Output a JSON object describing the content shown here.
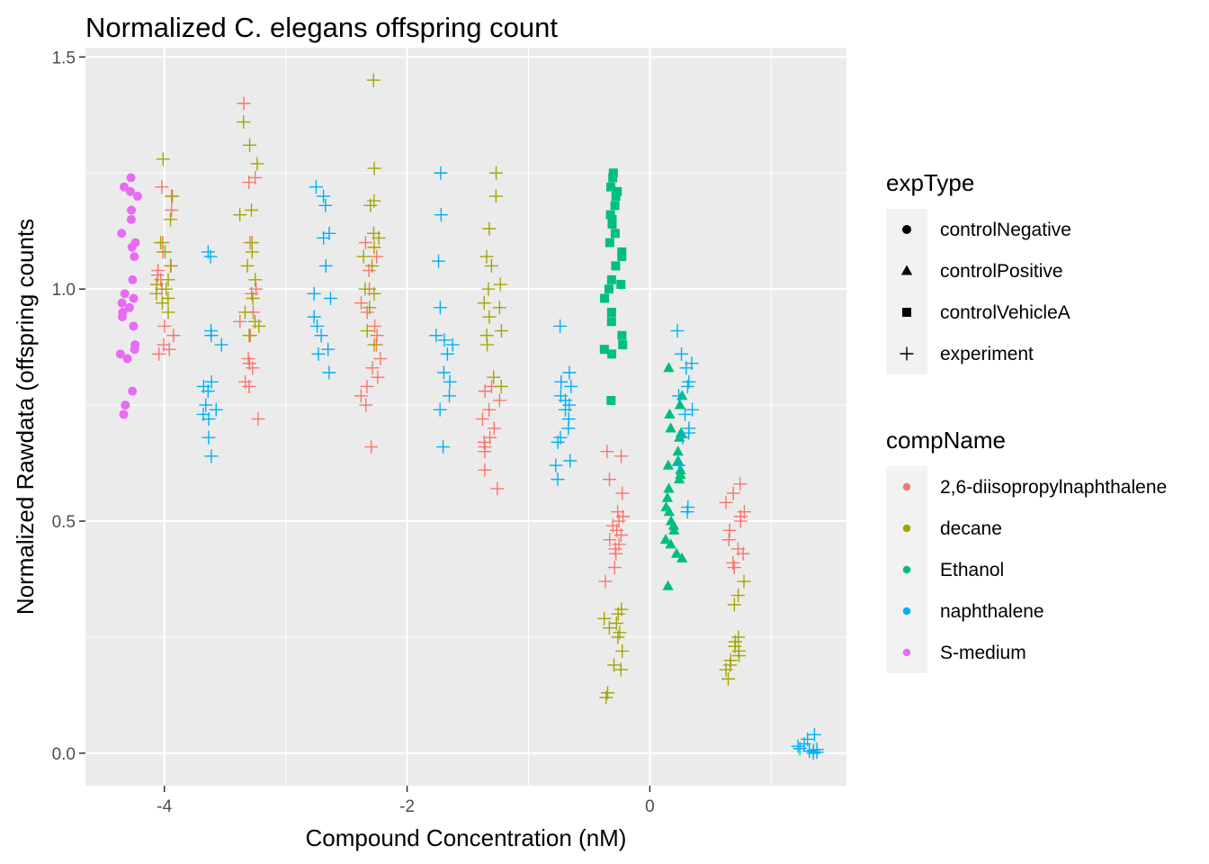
{
  "chart_data": {
    "type": "scatter",
    "title": "Normalized C. elegans offspring count",
    "xlabel": "Compound Concentration (nM)",
    "ylabel": "Normalized Rawdata (offspring counts",
    "xlim": [
      -4.65,
      1.62
    ],
    "ylim": [
      -0.07,
      1.52
    ],
    "x_ticks": [
      -4,
      -2,
      0
    ],
    "y_ticks": [
      0.0,
      0.5,
      1.0,
      1.5
    ],
    "x_tick_labels": [
      "-4",
      "-2",
      "0"
    ],
    "y_tick_labels": [
      "0.0",
      "0.5",
      "1.0",
      "1.5"
    ],
    "grid": true,
    "legend_position": "right",
    "shape_legend": {
      "title": "expType",
      "items": [
        {
          "label": "controlNegative",
          "shape": "circle"
        },
        {
          "label": "controlPositive",
          "shape": "triangle"
        },
        {
          "label": "controlVehicleA",
          "shape": "square"
        },
        {
          "label": "experiment",
          "shape": "plus"
        }
      ]
    },
    "color_legend": {
      "title": "compName",
      "items": [
        {
          "label": "2,6-diisopropylnaphthalene",
          "color": "#F8766D"
        },
        {
          "label": "decane",
          "color": "#A3A500"
        },
        {
          "label": "Ethanol",
          "color": "#00BF7D"
        },
        {
          "label": "naphthalene",
          "color": "#00B0F6"
        },
        {
          "label": "S-medium",
          "color": "#E76BF3"
        }
      ]
    },
    "groups": [
      {
        "compName": "S-medium",
        "expType": "controlNegative",
        "x": -4.3,
        "y": [
          1.24,
          1.22,
          1.21,
          1.2,
          1.17,
          1.15,
          1.12,
          1.1,
          1.09,
          1.07,
          1.02,
          0.99,
          0.98,
          0.97,
          0.96,
          0.95,
          0.94,
          0.92,
          0.88,
          0.87,
          0.86,
          0.85,
          0.78,
          0.75,
          0.73
        ]
      },
      {
        "compName": "2,6-diisopropylnaphthalene",
        "expType": "experiment",
        "x": -4.0,
        "y": [
          1.22,
          1.2,
          1.17,
          1.1,
          1.08,
          1.05,
          1.04,
          1.03,
          1.02,
          1.0,
          0.92,
          0.9,
          0.88,
          0.87,
          0.86
        ]
      },
      {
        "compName": "decane",
        "expType": "experiment",
        "x": -4.0,
        "y": [
          1.28,
          1.2,
          1.15,
          1.1,
          1.08,
          1.05,
          1.02,
          1.01,
          1.0,
          0.99,
          0.98,
          0.97,
          0.95
        ]
      },
      {
        "compName": "naphthalene",
        "expType": "experiment",
        "x": -3.6,
        "y": [
          1.08,
          1.07,
          0.91,
          0.9,
          0.88,
          0.8,
          0.79,
          0.78,
          0.75,
          0.74,
          0.73,
          0.72,
          0.68,
          0.64
        ]
      },
      {
        "compName": "2,6-diisopropylnaphthalene",
        "expType": "experiment",
        "x": -3.3,
        "y": [
          1.4,
          1.24,
          1.23,
          1.1,
          1.0,
          0.99,
          0.95,
          0.93,
          0.9,
          0.85,
          0.84,
          0.83,
          0.8,
          0.79,
          0.72
        ]
      },
      {
        "compName": "decane",
        "expType": "experiment",
        "x": -3.3,
        "y": [
          1.36,
          1.31,
          1.27,
          1.17,
          1.16,
          1.1,
          1.08,
          1.05,
          1.02,
          0.98,
          0.95,
          0.93,
          0.92,
          0.9
        ]
      },
      {
        "compName": "naphthalene",
        "expType": "experiment",
        "x": -2.7,
        "y": [
          1.22,
          1.2,
          1.18,
          1.12,
          1.11,
          1.05,
          0.99,
          0.98,
          0.94,
          0.92,
          0.9,
          0.87,
          0.86,
          0.82
        ]
      },
      {
        "compName": "2,6-diisopropylnaphthalene",
        "expType": "experiment",
        "x": -2.3,
        "y": [
          1.1,
          1.07,
          1.04,
          1.0,
          0.97,
          0.95,
          0.92,
          0.9,
          0.88,
          0.85,
          0.83,
          0.81,
          0.79,
          0.77,
          0.75,
          0.66
        ]
      },
      {
        "compName": "decane",
        "expType": "experiment",
        "x": -2.3,
        "y": [
          1.45,
          1.26,
          1.19,
          1.18,
          1.12,
          1.11,
          1.09,
          1.07,
          1.05,
          1.0,
          0.99,
          0.96,
          0.91,
          0.88
        ]
      },
      {
        "compName": "naphthalene",
        "expType": "experiment",
        "x": -1.7,
        "y": [
          1.25,
          1.16,
          1.06,
          0.96,
          0.9,
          0.89,
          0.88,
          0.86,
          0.82,
          0.8,
          0.77,
          0.74,
          0.66
        ]
      },
      {
        "compName": "2,6-diisopropylnaphthalene",
        "expType": "experiment",
        "x": -1.3,
        "y": [
          0.79,
          0.78,
          0.76,
          0.74,
          0.72,
          0.7,
          0.68,
          0.67,
          0.66,
          0.65,
          0.61,
          0.57
        ]
      },
      {
        "compName": "decane",
        "expType": "experiment",
        "x": -1.3,
        "y": [
          1.25,
          1.2,
          1.13,
          1.07,
          1.05,
          1.01,
          1.0,
          0.97,
          0.96,
          0.94,
          0.91,
          0.9,
          0.88,
          0.81,
          0.79
        ]
      },
      {
        "compName": "naphthalene",
        "expType": "experiment",
        "x": -0.7,
        "y": [
          0.92,
          0.82,
          0.8,
          0.79,
          0.77,
          0.76,
          0.75,
          0.74,
          0.72,
          0.7,
          0.68,
          0.67,
          0.63,
          0.62,
          0.59
        ]
      },
      {
        "compName": "Ethanol",
        "expType": "controlVehicleA",
        "x": -0.3,
        "y": [
          1.25,
          1.24,
          1.22,
          1.21,
          1.2,
          1.18,
          1.16,
          1.15,
          1.14,
          1.12,
          1.1,
          1.08,
          1.07,
          1.05,
          1.02,
          1.01,
          1.0,
          0.98,
          0.95,
          0.93,
          0.9,
          0.88,
          0.87,
          0.86,
          0.76
        ]
      },
      {
        "compName": "2,6-diisopropylnaphthalene",
        "expType": "experiment",
        "x": -0.3,
        "y": [
          0.65,
          0.64,
          0.59,
          0.56,
          0.52,
          0.51,
          0.5,
          0.49,
          0.48,
          0.47,
          0.46,
          0.45,
          0.44,
          0.43,
          0.4,
          0.37
        ]
      },
      {
        "compName": "decane",
        "expType": "experiment",
        "x": -0.3,
        "y": [
          0.31,
          0.3,
          0.29,
          0.28,
          0.27,
          0.26,
          0.25,
          0.22,
          0.19,
          0.18,
          0.13,
          0.12
        ]
      },
      {
        "compName": "Ethanol",
        "expType": "controlPositive",
        "x": 0.2,
        "y": [
          0.83,
          0.77,
          0.75,
          0.73,
          0.7,
          0.69,
          0.68,
          0.65,
          0.63,
          0.62,
          0.61,
          0.6,
          0.59,
          0.57,
          0.55,
          0.53,
          0.52,
          0.5,
          0.49,
          0.48,
          0.46,
          0.45,
          0.43,
          0.42,
          0.36
        ]
      },
      {
        "compName": "naphthalene",
        "expType": "experiment",
        "x": 0.3,
        "y": [
          0.91,
          0.86,
          0.84,
          0.83,
          0.8,
          0.79,
          0.77,
          0.74,
          0.73,
          0.7,
          0.69,
          0.68,
          0.62,
          0.53,
          0.52
        ]
      },
      {
        "compName": "2,6-diisopropylnaphthalene",
        "expType": "experiment",
        "x": 0.7,
        "y": [
          0.58,
          0.56,
          0.54,
          0.52,
          0.51,
          0.5,
          0.48,
          0.46,
          0.44,
          0.43,
          0.41,
          0.4
        ]
      },
      {
        "compName": "decane",
        "expType": "experiment",
        "x": 0.7,
        "y": [
          0.37,
          0.34,
          0.32,
          0.25,
          0.24,
          0.23,
          0.22,
          0.21,
          0.2,
          0.19,
          0.18,
          0.16
        ]
      },
      {
        "compName": "naphthalene",
        "expType": "experiment",
        "x": 1.3,
        "y": [
          0.04,
          0.03,
          0.02,
          0.015,
          0.01,
          0.008,
          0.006,
          0.004,
          0.002,
          0.0
        ]
      }
    ]
  }
}
